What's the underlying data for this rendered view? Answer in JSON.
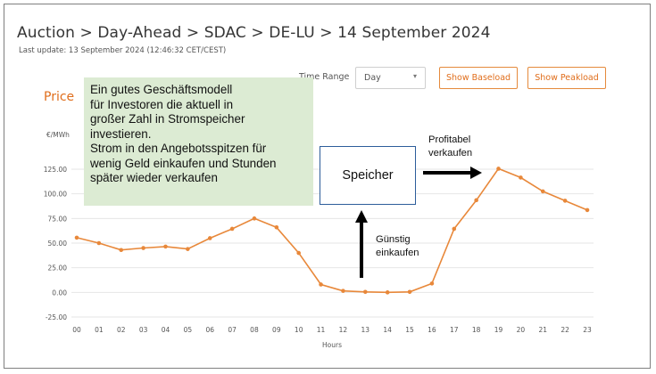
{
  "header": {
    "breadcrumb": "Auction > Day-Ahead > SDAC > DE-LU > 14 September 2024",
    "last_update": "Last update: 13 September 2024 (12:46:32 CET/CEST)"
  },
  "controls": {
    "time_range_label": "Time Range",
    "time_range_value": "Day",
    "baseload_button": "Show Baseload",
    "peakload_button": "Show Peakload"
  },
  "annotations": {
    "note_lines": [
      "Ein gutes Geschäftsmodell",
      "für Investoren die aktuell in",
      "großer Zahl in Stromspeicher",
      "investieren.",
      "Strom in den Angebotsspitzen für",
      "wenig Geld einkaufen und Stunden",
      "später wieder verkaufen"
    ],
    "storage_label": "Speicher",
    "sell_lines": [
      "Profitabel",
      "verkaufen"
    ],
    "buy_lines": [
      "Günstig",
      "einkaufen"
    ]
  },
  "colors": {
    "line": "#e8883a",
    "accent": "#e06e1c",
    "note_bg": "#dcebd3",
    "grid": "#e6e6e6"
  },
  "chart_data": {
    "type": "line",
    "title": "Price",
    "ylabel": "€/MWh",
    "xlabel": "Hours",
    "ylim": [
      -25,
      125
    ],
    "yticks": [
      "125.00",
      "100.00",
      "75.00",
      "50.00",
      "25.00",
      "0.00",
      "-25.00"
    ],
    "categories": [
      "00",
      "01",
      "02",
      "03",
      "04",
      "05",
      "06",
      "07",
      "08",
      "09",
      "10",
      "11",
      "12",
      "13",
      "14",
      "15",
      "16",
      "17",
      "18",
      "19",
      "20",
      "21",
      "22",
      "23"
    ],
    "series": [
      {
        "name": "",
        "values": [
          55.5,
          50,
          43,
          45,
          46.5,
          44,
          55,
          64.5,
          75,
          66,
          40,
          8,
          1.5,
          0.5,
          0,
          0.5,
          9,
          64.5,
          93.5,
          125.5,
          116.5,
          102.5,
          93,
          83.5
        ]
      }
    ]
  }
}
